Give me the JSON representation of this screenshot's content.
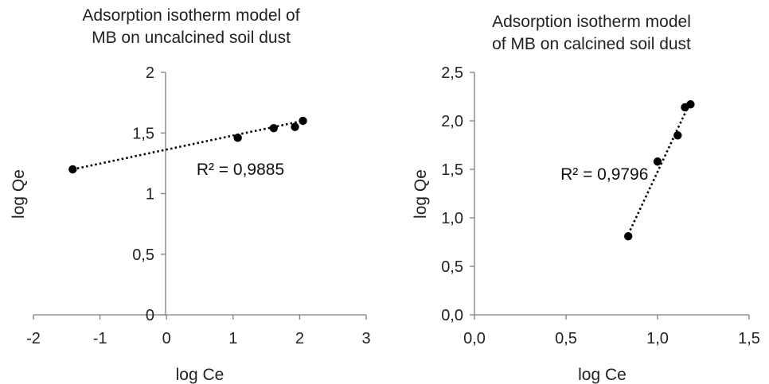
{
  "chart_data": [
    {
      "type": "scatter",
      "title_lines": [
        "Adsorption isotherm model of",
        "MB on uncalcined soil dust"
      ],
      "xlabel": "log Ce",
      "ylabel": "log Qe",
      "xlim": [
        -2,
        3
      ],
      "ylim": [
        0,
        2
      ],
      "x_ticks": [
        "-2",
        "-1",
        "0",
        "1",
        "2",
        "3"
      ],
      "y_ticks": [
        "0",
        "0,5",
        "1",
        "1,5",
        "2"
      ],
      "x": [
        -1.41,
        1.07,
        1.61,
        1.93,
        2.05
      ],
      "y": [
        1.2,
        1.46,
        1.54,
        1.55,
        1.6
      ],
      "trendline": {
        "x": [
          -1.41,
          2.05
        ],
        "y": [
          1.2,
          1.6
        ]
      },
      "r2_label": "R² = 0,9885",
      "r2_anchor": [
        0.45,
        1.2
      ],
      "grid": false,
      "legend": "none"
    },
    {
      "type": "scatter",
      "title_lines": [
        "Adsorption isotherm model",
        "of MB on calcined soil dust"
      ],
      "xlabel": "log Ce",
      "ylabel": "log Qe",
      "xlim": [
        0,
        1.5
      ],
      "ylim": [
        0,
        2.5
      ],
      "x_ticks": [
        "0,0",
        "0,5",
        "1,0",
        "1,5"
      ],
      "y_ticks": [
        "0,0",
        "0,5",
        "1,0",
        "1,5",
        "2,0",
        "2,5"
      ],
      "x": [
        0.84,
        1.0,
        1.11,
        1.15,
        1.18
      ],
      "y": [
        0.81,
        1.58,
        1.85,
        2.14,
        2.17
      ],
      "trendline": {
        "x": [
          0.84,
          1.18
        ],
        "y": [
          0.83,
          2.2
        ]
      },
      "r2_label": "R² = 0,9796",
      "r2_anchor": [
        0.47,
        1.45
      ],
      "grid": false,
      "legend": "none"
    }
  ]
}
